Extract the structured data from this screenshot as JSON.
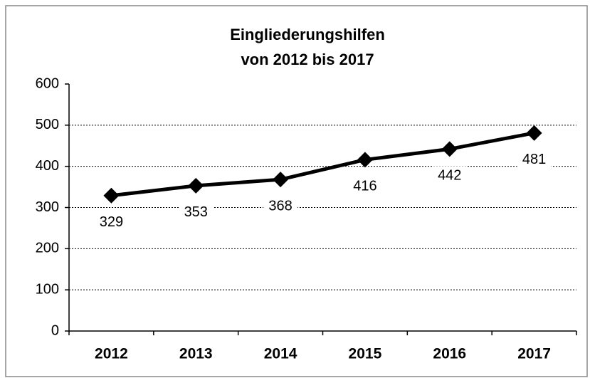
{
  "chart_data": {
    "type": "line",
    "title": "Eingliederungshilfen",
    "subtitle": "von 2012 bis 2017",
    "categories": [
      "2012",
      "2013",
      "2014",
      "2015",
      "2016",
      "2017"
    ],
    "series": [
      {
        "name": "Eingliederungshilfen",
        "color": "#000000",
        "values": [
          329,
          353,
          368,
          416,
          442,
          481
        ]
      }
    ],
    "ylim": [
      0,
      600
    ],
    "yticks": [
      0,
      100,
      200,
      300,
      400,
      500,
      600
    ],
    "grid": true
  }
}
